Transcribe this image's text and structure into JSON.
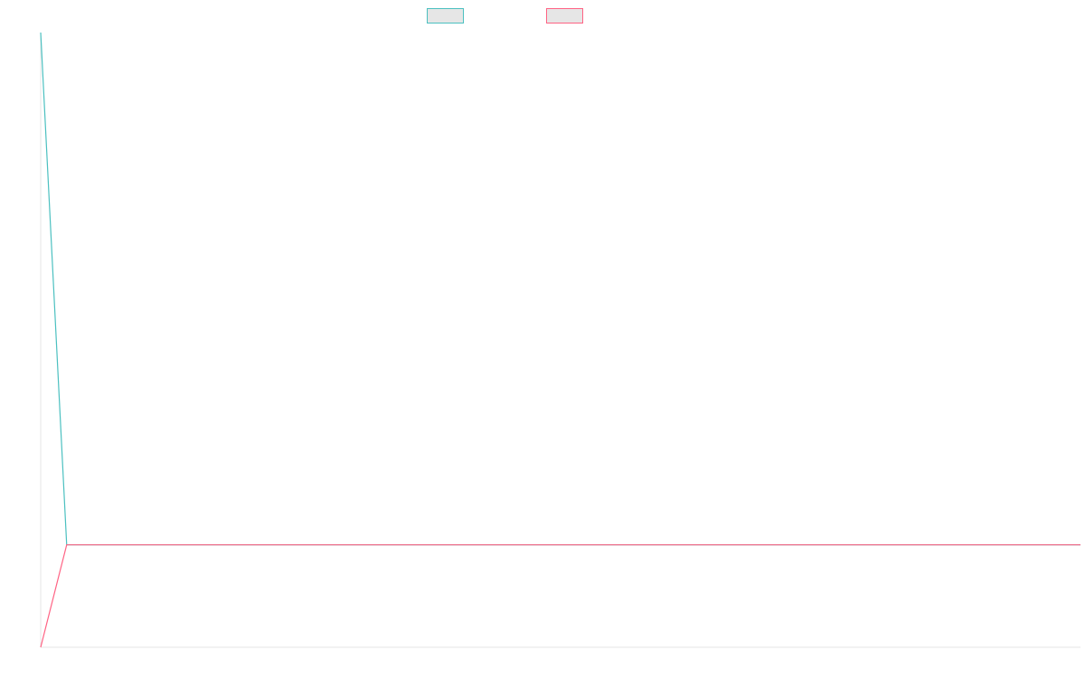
{
  "chart_data": {
    "type": "line",
    "title": "",
    "xlabel": "",
    "ylabel": "",
    "legend_position": "top-center",
    "grid": false,
    "x": [
      0,
      1,
      2,
      3,
      4,
      5,
      6,
      7,
      8,
      9,
      10,
      11,
      12,
      13,
      14,
      15,
      16,
      17,
      18,
      19,
      20,
      21,
      22,
      23,
      24,
      25,
      26,
      27,
      28,
      29,
      30,
      31,
      32,
      33,
      34,
      35,
      36,
      37,
      38,
      39,
      40
    ],
    "ylim": [
      -1,
      5
    ],
    "series": [
      {
        "name": "",
        "color": "#4bc0c0",
        "values": [
          5,
          0,
          0,
          0,
          0,
          0,
          0,
          0,
          0,
          0,
          0,
          0,
          0,
          0,
          0,
          0,
          0,
          0,
          0,
          0,
          0,
          0,
          0,
          0,
          0,
          0,
          0,
          0,
          0,
          0,
          0,
          0,
          0,
          0,
          0,
          0,
          0,
          0,
          0,
          0,
          0
        ]
      },
      {
        "name": "",
        "color": "#ff6384",
        "values": [
          -1,
          0,
          0,
          0,
          0,
          0,
          0,
          0,
          0,
          0,
          0,
          0,
          0,
          0,
          0,
          0,
          0,
          0,
          0,
          0,
          0,
          0,
          0,
          0,
          0,
          0,
          0,
          0,
          0,
          0,
          0,
          0,
          0,
          0,
          0,
          0,
          0,
          0,
          0,
          0,
          0
        ]
      }
    ]
  }
}
